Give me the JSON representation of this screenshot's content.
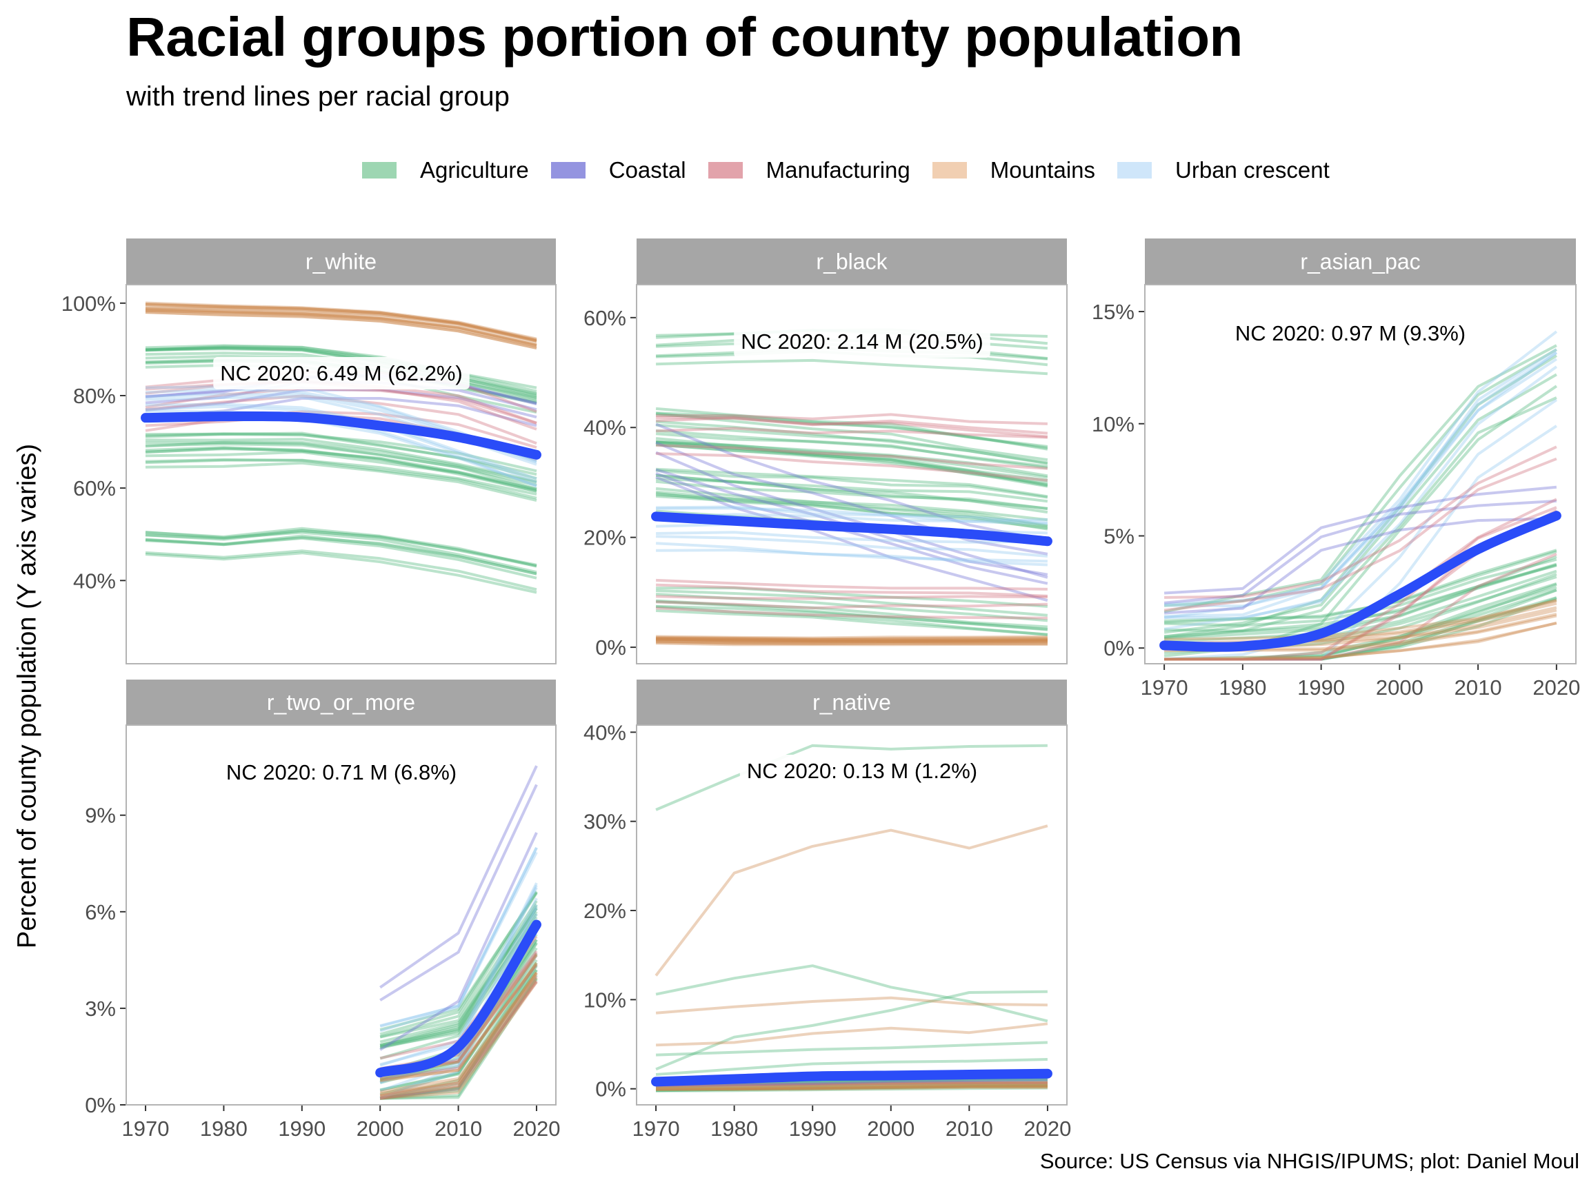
{
  "title": "Racial groups portion of county population",
  "subtitle": "with trend lines per racial group",
  "y_axis_label": "Percent of county population (Y axis varies)",
  "caption": "Source: US Census via NHGIS/IPUMS; plot: Daniel Moul",
  "legend": [
    {
      "label": "Agriculture",
      "color": "#9dd6b2"
    },
    {
      "label": "Coastal",
      "color": "#9494e0"
    },
    {
      "label": "Manufacturing",
      "color": "#e2a3ab"
    },
    {
      "label": "Mountains",
      "color": "#f1cfb2"
    },
    {
      "label": "Urban crescent",
      "color": "#cfe6fa"
    }
  ],
  "colors": {
    "strip": "#a6a6a6",
    "strip_text": "#ffffff",
    "trend": "#2a4cf8",
    "panel_border": "#b3b3b3",
    "tick_text": "#4d4d4d",
    "agriculture_line": "#4db57a",
    "coastal_line": "#6f6fd6",
    "manufacturing_line": "#cf6f7b",
    "mountains_line": "#cc8a4f",
    "urban_line": "#91c8ef"
  },
  "chart_data": [
    {
      "type": "line",
      "facet": "r_white",
      "x": [
        1970,
        1980,
        1990,
        2000,
        2010,
        2020
      ],
      "ylim": [
        22,
        104
      ],
      "yticks": [
        "40%",
        "60%",
        "80%",
        "100%"
      ],
      "ytick_values": [
        40,
        60,
        80,
        100
      ],
      "xticks": [],
      "annotation": "NC 2020: 6.49 M (62.2%)",
      "trend": {
        "name": "trend",
        "values": [
          75.2,
          75.5,
          75.3,
          73.5,
          71.0,
          67.2
        ]
      },
      "groups": [
        {
          "region": "mountains",
          "base": [
            99,
            98.6,
            98.2,
            97.3,
            95.2,
            91.5
          ],
          "n": 12,
          "spread": 2.2
        },
        {
          "region": "agriculture",
          "base": [
            88,
            88.5,
            88.3,
            86,
            82.5,
            79
          ],
          "n": 12,
          "spread": 5
        },
        {
          "region": "agriculture",
          "base": [
            68,
            68.5,
            68.5,
            66.5,
            64,
            60
          ],
          "n": 14,
          "spread": 8
        },
        {
          "region": "agriculture",
          "base": [
            48,
            47,
            48.5,
            47,
            44,
            40.5
          ],
          "n": 9,
          "spread": 6
        },
        {
          "region": "coastal",
          "base": [
            76,
            77.5,
            80.5,
            81,
            79,
            75
          ],
          "n": 5,
          "spread": 8
        },
        {
          "region": "manufacturing",
          "base": [
            76,
            77.5,
            79,
            78,
            75.5,
            70
          ],
          "n": 7,
          "spread": 12
        },
        {
          "region": "urban",
          "base": [
            78,
            78.5,
            78,
            74.5,
            69,
            63
          ],
          "n": 8,
          "spread": 8
        }
      ]
    },
    {
      "type": "line",
      "facet": "r_black",
      "x": [
        1970,
        1980,
        1990,
        2000,
        2010,
        2020
      ],
      "ylim": [
        -3,
        66
      ],
      "yticks": [
        "0%",
        "20%",
        "40%",
        "60%"
      ],
      "ytick_values": [
        0,
        20,
        40,
        60
      ],
      "xticks": [],
      "annotation": "NC 2020: 2.14 M (20.5%)",
      "trend": {
        "name": "trend",
        "values": [
          23.8,
          23.0,
          22.2,
          21.5,
          20.6,
          19.3
        ]
      },
      "groups": [
        {
          "region": "mountains",
          "base": [
            1.5,
            1.3,
            1.2,
            1.2,
            1.2,
            1.2
          ],
          "n": 14,
          "spread": 1.6
        },
        {
          "region": "agriculture",
          "base": [
            55,
            55.5,
            56,
            55.5,
            55,
            54
          ],
          "n": 7,
          "spread": 7
        },
        {
          "region": "agriculture",
          "base": [
            40,
            39,
            38,
            37,
            35,
            33
          ],
          "n": 15,
          "spread": 8
        },
        {
          "region": "agriculture",
          "base": [
            28,
            27,
            26,
            25,
            24,
            22
          ],
          "n": 12,
          "spread": 9
        },
        {
          "region": "agriculture",
          "base": [
            9,
            8.5,
            8,
            7,
            6,
            5
          ],
          "n": 8,
          "spread": 6
        },
        {
          "region": "coastal",
          "base": [
            35,
            30,
            26,
            22,
            18,
            15
          ],
          "n": 6,
          "spread": 14
        },
        {
          "region": "manufacturing",
          "base": [
            40,
            40,
            39,
            39,
            38,
            37
          ],
          "n": 6,
          "spread": 10
        },
        {
          "region": "manufacturing",
          "base": [
            10,
            9.5,
            9,
            9,
            9,
            9
          ],
          "n": 5,
          "spread": 6
        },
        {
          "region": "urban",
          "base": [
            22,
            22,
            21.5,
            21,
            20.5,
            20
          ],
          "n": 8,
          "spread": 10
        }
      ]
    },
    {
      "type": "line",
      "facet": "r_asian_pac",
      "x": [
        1970,
        1980,
        1990,
        2000,
        2010,
        2020
      ],
      "ylim": [
        -0.7,
        16.2
      ],
      "yticks": [
        "0%",
        "5%",
        "10%",
        "15%"
      ],
      "ytick_values": [
        0,
        5,
        10,
        15
      ],
      "xticks": [
        "1970",
        "1980",
        "1990",
        "2000",
        "2010",
        "2020"
      ],
      "annotation": "NC 2020: 0.97 M (9.3%)",
      "trend": {
        "name": "trend",
        "values": [
          0.12,
          0.08,
          0.65,
          2.4,
          4.4,
          5.9
        ]
      },
      "groups": [
        {
          "region": "agriculture",
          "base": [
            0.05,
            0.15,
            0.35,
            1.1,
            2.2,
            3.3
          ],
          "n": 18,
          "spread": 2.4
        },
        {
          "region": "agriculture",
          "base": [
            0.2,
            0.5,
            1.4,
            5.5,
            9.5,
            11.5
          ],
          "n": 6,
          "spread": 6
        },
        {
          "region": "urban",
          "base": [
            0.3,
            0.5,
            1.3,
            5,
            9.5,
            12
          ],
          "n": 8,
          "spread": 5
        },
        {
          "region": "coastal",
          "base": [
            0.9,
            1.2,
            3.8,
            4.8,
            5.2,
            5.5
          ],
          "n": 3,
          "spread": 3
        },
        {
          "region": "manufacturing",
          "base": [
            0.1,
            0.25,
            0.8,
            2.8,
            5.5,
            7
          ],
          "n": 7,
          "spread": 5
        },
        {
          "region": "mountains",
          "base": [
            0.05,
            0.1,
            0.2,
            0.5,
            1.0,
            1.8
          ],
          "n": 9,
          "spread": 1.2
        }
      ]
    },
    {
      "type": "line",
      "facet": "r_two_or_more",
      "x": [
        1970,
        1980,
        1990,
        2000,
        2010,
        2020
      ],
      "ylim": [
        0,
        11.8
      ],
      "yticks": [
        "0%",
        "3%",
        "6%",
        "9%"
      ],
      "ytick_values": [
        0,
        3,
        6,
        9
      ],
      "xticks": [
        "1970",
        "1980",
        "1990",
        "2000",
        "2010",
        "2020"
      ],
      "annotation": "NC 2020: 0.71 M (6.8%)",
      "trend": {
        "name": "trend",
        "values": [
          null,
          null,
          null,
          1.0,
          1.8,
          5.6
        ]
      },
      "groups": [
        {
          "region": "agriculture",
          "base": [
            null,
            null,
            null,
            1.1,
            1.7,
            5.4
          ],
          "n": 30,
          "spread": 2.6
        },
        {
          "region": "urban",
          "base": [
            null,
            null,
            null,
            1.3,
            2.1,
            7.0
          ],
          "n": 10,
          "spread": 3
        },
        {
          "region": "coastal",
          "base": [
            null,
            null,
            null,
            2.7,
            4.3,
            9.5
          ],
          "n": 3,
          "spread": 2.5
        },
        {
          "region": "manufacturing",
          "base": [
            null,
            null,
            null,
            0.9,
            1.3,
            4.6
          ],
          "n": 8,
          "spread": 2
        },
        {
          "region": "mountains",
          "base": [
            null,
            null,
            null,
            0.9,
            1.3,
            4.7
          ],
          "n": 8,
          "spread": 2
        }
      ]
    },
    {
      "type": "line",
      "facet": "r_native",
      "x": [
        1970,
        1980,
        1990,
        2000,
        2010,
        2020
      ],
      "ylim": [
        -1.8,
        40.8
      ],
      "yticks": [
        "0%",
        "10%",
        "20%",
        "30%",
        "40%"
      ],
      "ytick_values": [
        0,
        10,
        20,
        30,
        40
      ],
      "xticks": [
        "1970",
        "1980",
        "1990",
        "2000",
        "2010",
        "2020"
      ],
      "annotation": "NC 2020: 0.13 M (1.2%)",
      "trend": {
        "name": "trend",
        "values": [
          0.8,
          1.1,
          1.4,
          1.5,
          1.6,
          1.7
        ]
      },
      "lines": [
        {
          "region": "agriculture",
          "values": [
            31.3,
            35.0,
            38.5,
            38.1,
            38.4,
            38.5
          ]
        },
        {
          "region": "mountains",
          "values": [
            12.7,
            24.2,
            27.2,
            29.0,
            27.0,
            29.5
          ]
        },
        {
          "region": "agriculture",
          "values": [
            10.6,
            12.4,
            13.8,
            11.4,
            9.8,
            7.6
          ]
        },
        {
          "region": "agriculture",
          "values": [
            2.2,
            5.8,
            7.1,
            8.8,
            10.8,
            10.9
          ]
        },
        {
          "region": "mountains",
          "values": [
            8.5,
            9.2,
            9.8,
            10.2,
            9.5,
            9.4
          ]
        },
        {
          "region": "mountains",
          "values": [
            4.9,
            5.2,
            6.2,
            6.8,
            6.3,
            7.3
          ]
        },
        {
          "region": "agriculture",
          "values": [
            3.8,
            4.1,
            4.4,
            4.6,
            4.9,
            5.2
          ]
        },
        {
          "region": "agriculture",
          "values": [
            1.6,
            2.2,
            2.8,
            3.0,
            3.1,
            3.3
          ]
        },
        {
          "region": "urban",
          "values": [
            0.6,
            0.8,
            1.0,
            1.2,
            1.3,
            1.4
          ]
        },
        {
          "region": "agriculture",
          "values": [
            0.5,
            0.6,
            0.7,
            0.9,
            1.0,
            1.1
          ]
        },
        {
          "region": "manufacturing",
          "values": [
            0.3,
            0.4,
            0.5,
            0.6,
            0.7,
            0.7
          ]
        },
        {
          "region": "coastal",
          "values": [
            0.4,
            0.5,
            0.6,
            0.8,
            0.9,
            1.0
          ]
        }
      ],
      "groups": [
        {
          "region": "agriculture",
          "base": [
            0.3,
            0.4,
            0.5,
            0.6,
            0.7,
            0.8
          ],
          "n": 12,
          "spread": 1.2
        },
        {
          "region": "mountains",
          "base": [
            0.2,
            0.25,
            0.3,
            0.4,
            0.5,
            0.5
          ],
          "n": 8,
          "spread": 0.6
        }
      ]
    }
  ]
}
